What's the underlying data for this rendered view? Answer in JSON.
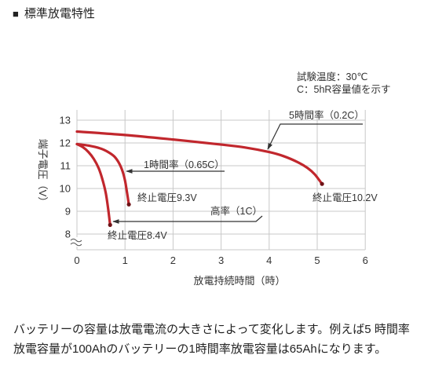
{
  "header": {
    "bullet": "■",
    "title": "標準放電特性"
  },
  "colors": {
    "series": "#c1272d",
    "end_marker": "#6e1216",
    "grid": "#c8c8c8",
    "pointer": "#333333"
  },
  "chart_data": {
    "type": "line",
    "xlabel": "放電持続時間（時）",
    "ylabel": "端子電圧（V）",
    "xlim": [
      0,
      6
    ],
    "ylim": [
      8,
      13
    ],
    "xticks": [
      0,
      1,
      2,
      3,
      4,
      5,
      6
    ],
    "yticks": [
      8,
      9,
      10,
      11,
      12,
      13
    ],
    "grid": true,
    "y_axis_break": true,
    "notes": [
      "試験温度：30℃",
      "C：5hR容量値を示す"
    ],
    "series": [
      {
        "name": "5時間率（0.2C）",
        "end_label": "終止電圧10.2V",
        "x": [
          0,
          1,
          2,
          3,
          3.5,
          4,
          4.3,
          4.6,
          4.8,
          4.95,
          5.1
        ],
        "y": [
          12.5,
          12.35,
          12.15,
          11.93,
          11.8,
          11.6,
          11.42,
          11.15,
          10.9,
          10.62,
          10.2
        ]
      },
      {
        "name": "1時間率（0.65C）",
        "end_label": "終止電圧9.3V",
        "x": [
          0,
          0.25,
          0.5,
          0.65,
          0.78,
          0.88,
          0.95,
          1.0,
          1.04,
          1.08
        ],
        "y": [
          11.95,
          11.88,
          11.75,
          11.6,
          11.4,
          11.1,
          10.75,
          10.35,
          9.85,
          9.3
        ]
      },
      {
        "name": "高率（1C）",
        "end_label": "終止電圧8.4V",
        "x": [
          0,
          0.12,
          0.24,
          0.35,
          0.45,
          0.53,
          0.6,
          0.65,
          0.69
        ],
        "y": [
          11.95,
          11.82,
          11.6,
          11.3,
          10.9,
          10.4,
          9.8,
          9.1,
          8.4
        ]
      }
    ]
  },
  "paragraph": {
    "lines": [
      "バッテリーの容量は放電電流の大きさによって変化します。例えば5 時間率",
      "放電容量が100Ahのバッテリーの1時間率放電容量は65Ahになります。"
    ]
  }
}
